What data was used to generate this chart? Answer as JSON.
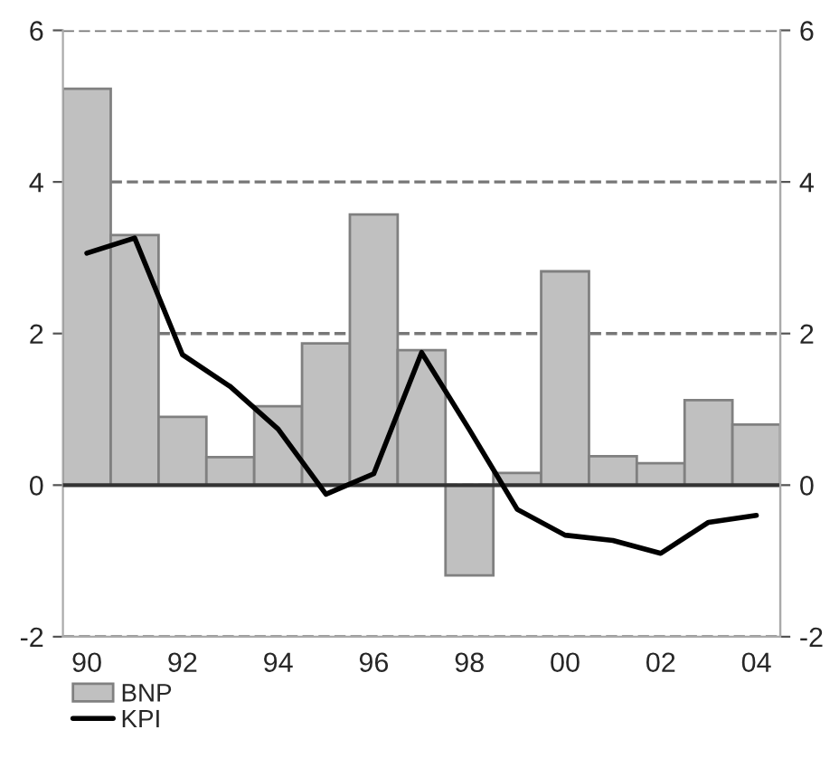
{
  "chart_data": {
    "type": "bar",
    "categories": [
      "90",
      null,
      "92",
      null,
      "94",
      null,
      "96",
      null,
      "98",
      null,
      "00",
      null,
      "02",
      null,
      "04"
    ],
    "series": [
      {
        "name": "BNP",
        "color": "#c0c0c0",
        "values": [
          5.23,
          3.3,
          0.9,
          0.37,
          1.04,
          1.87,
          3.57,
          1.78,
          -1.19,
          0.16,
          2.82,
          0.38,
          0.29,
          1.12,
          0.8
        ]
      },
      {
        "name": "KPI",
        "type": "line",
        "color": "#000000",
        "values": [
          3.06,
          3.26,
          1.72,
          1.3,
          0.74,
          -0.12,
          0.15,
          1.75,
          0.73,
          -0.32,
          -0.66,
          -0.73,
          -0.9,
          -0.49,
          -0.4
        ]
      }
    ],
    "ylim": [
      -2,
      6
    ],
    "yticks": [
      -2,
      0,
      2,
      4,
      6
    ],
    "y2lim": [
      -2,
      6
    ],
    "y2ticks": [
      -2,
      0,
      2,
      4,
      6
    ],
    "grid": "y",
    "legend": "bottom left",
    "ref_lines": [
      {
        "axis": "y",
        "value": 0,
        "color": "#333333",
        "line_style": "solid"
      }
    ]
  }
}
